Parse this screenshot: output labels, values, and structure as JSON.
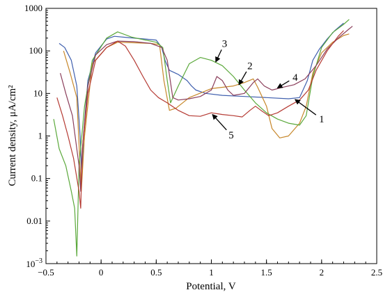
{
  "chart_data": {
    "type": "line",
    "title": "",
    "xlabel": "Potential, V",
    "ylabel": "Current density, μA/cm²",
    "xlim": [
      -0.5,
      2.5
    ],
    "ylim": [
      0.001,
      1000
    ],
    "yscale": "log",
    "grid": false,
    "legend": "none",
    "x_ticks": [
      {
        "v": -0.5,
        "label": "−0.5"
      },
      {
        "v": 0,
        "label": "0"
      },
      {
        "v": 0.5,
        "label": "0.5"
      },
      {
        "v": 1,
        "label": "1"
      },
      {
        "v": 1.5,
        "label": "1.5"
      },
      {
        "v": 2,
        "label": "2"
      },
      {
        "v": 2.5,
        "label": "2.5"
      }
    ],
    "y_ticks": [
      {
        "v": 1000,
        "label": "1000"
      },
      {
        "v": 100,
        "label": "100"
      },
      {
        "v": 10,
        "label": "10"
      },
      {
        "v": 1,
        "label": "1"
      },
      {
        "v": 0.1,
        "label": "0.1"
      },
      {
        "v": 0.01,
        "label": "0.01"
      }
    ],
    "y_min_label": {
      "base": "10",
      "exp": "−3"
    },
    "series": [
      {
        "name": "1",
        "color": "#3f5fae",
        "points": [
          [
            -0.38,
            150
          ],
          [
            -0.33,
            120
          ],
          [
            -0.27,
            60
          ],
          [
            -0.22,
            15
          ],
          [
            -0.19,
            1
          ],
          [
            -0.175,
            0.1
          ],
          [
            -0.16,
            1
          ],
          [
            -0.12,
            20
          ],
          [
            -0.05,
            90
          ],
          [
            0.05,
            190
          ],
          [
            0.12,
            220
          ],
          [
            0.25,
            205
          ],
          [
            0.4,
            190
          ],
          [
            0.5,
            180
          ],
          [
            0.55,
            120
          ],
          [
            0.58,
            60
          ],
          [
            0.62,
            35
          ],
          [
            0.7,
            28
          ],
          [
            0.78,
            20
          ],
          [
            0.82,
            15
          ],
          [
            0.86,
            12
          ],
          [
            0.95,
            10
          ],
          [
            1.1,
            9
          ],
          [
            1.3,
            8.5
          ],
          [
            1.5,
            8
          ],
          [
            1.7,
            7.5
          ],
          [
            1.8,
            8
          ],
          [
            1.87,
            20
          ],
          [
            1.92,
            60
          ],
          [
            1.98,
            110
          ],
          [
            2.05,
            190
          ],
          [
            2.12,
            300
          ],
          [
            2.2,
            450
          ]
        ]
      },
      {
        "name": "2",
        "color": "#c7872a",
        "points": [
          [
            -0.34,
            100
          ],
          [
            -0.28,
            30
          ],
          [
            -0.22,
            8
          ],
          [
            -0.18,
            0.05
          ],
          [
            -0.15,
            1
          ],
          [
            -0.08,
            50
          ],
          [
            0.05,
            120
          ],
          [
            0.15,
            160
          ],
          [
            0.3,
            155
          ],
          [
            0.45,
            150
          ],
          [
            0.53,
            140
          ],
          [
            0.57,
            20
          ],
          [
            0.62,
            4
          ],
          [
            0.68,
            4.5
          ],
          [
            0.8,
            8
          ],
          [
            1.0,
            13
          ],
          [
            1.2,
            15
          ],
          [
            1.3,
            18
          ],
          [
            1.38,
            22
          ],
          [
            1.42,
            14
          ],
          [
            1.5,
            5
          ],
          [
            1.55,
            1.5
          ],
          [
            1.62,
            0.9
          ],
          [
            1.7,
            1
          ],
          [
            1.8,
            2
          ],
          [
            1.86,
            5
          ],
          [
            1.92,
            30
          ],
          [
            2.0,
            90
          ],
          [
            2.1,
            160
          ],
          [
            2.2,
            230
          ],
          [
            2.25,
            250
          ]
        ]
      },
      {
        "name": "3",
        "color": "#5aa83a",
        "points": [
          [
            -0.43,
            2.5
          ],
          [
            -0.38,
            0.5
          ],
          [
            -0.32,
            0.2
          ],
          [
            -0.27,
            0.05
          ],
          [
            -0.24,
            0.02
          ],
          [
            -0.22,
            0.0015
          ],
          [
            -0.2,
            0.2
          ],
          [
            -0.15,
            5
          ],
          [
            -0.08,
            60
          ],
          [
            0.05,
            200
          ],
          [
            0.15,
            280
          ],
          [
            0.28,
            210
          ],
          [
            0.4,
            180
          ],
          [
            0.5,
            160
          ],
          [
            0.56,
            120
          ],
          [
            0.6,
            20
          ],
          [
            0.63,
            6
          ],
          [
            0.7,
            15
          ],
          [
            0.8,
            50
          ],
          [
            0.9,
            70
          ],
          [
            1.0,
            60
          ],
          [
            1.1,
            45
          ],
          [
            1.2,
            25
          ],
          [
            1.3,
            12
          ],
          [
            1.4,
            6
          ],
          [
            1.5,
            3.5
          ],
          [
            1.6,
            2.5
          ],
          [
            1.7,
            2
          ],
          [
            1.8,
            1.8
          ],
          [
            1.86,
            3
          ],
          [
            1.92,
            25
          ],
          [
            2.0,
            120
          ],
          [
            2.1,
            270
          ],
          [
            2.2,
            420
          ],
          [
            2.25,
            550
          ]
        ]
      },
      {
        "name": "4",
        "color": "#8a3d5a",
        "points": [
          [
            -0.37,
            30
          ],
          [
            -0.32,
            10
          ],
          [
            -0.26,
            3
          ],
          [
            -0.2,
            0.2
          ],
          [
            -0.185,
            0.05
          ],
          [
            -0.17,
            0.5
          ],
          [
            -0.12,
            15
          ],
          [
            -0.05,
            80
          ],
          [
            0.05,
            140
          ],
          [
            0.15,
            170
          ],
          [
            0.3,
            165
          ],
          [
            0.45,
            150
          ],
          [
            0.55,
            120
          ],
          [
            0.6,
            60
          ],
          [
            0.65,
            8
          ],
          [
            0.7,
            7
          ],
          [
            0.8,
            7.5
          ],
          [
            0.9,
            8.5
          ],
          [
            1.0,
            12
          ],
          [
            1.05,
            25
          ],
          [
            1.1,
            20
          ],
          [
            1.15,
            12
          ],
          [
            1.2,
            9
          ],
          [
            1.3,
            10
          ],
          [
            1.38,
            18
          ],
          [
            1.42,
            22
          ],
          [
            1.48,
            15
          ],
          [
            1.55,
            12
          ],
          [
            1.65,
            14
          ],
          [
            1.75,
            16
          ],
          [
            1.85,
            22
          ],
          [
            1.95,
            45
          ],
          [
            2.05,
            110
          ],
          [
            2.15,
            200
          ],
          [
            2.25,
            330
          ],
          [
            2.28,
            380
          ]
        ]
      },
      {
        "name": "5",
        "color": "#b53a33",
        "points": [
          [
            -0.4,
            8
          ],
          [
            -0.35,
            3
          ],
          [
            -0.3,
            1
          ],
          [
            -0.25,
            0.3
          ],
          [
            -0.2,
            0.05
          ],
          [
            -0.185,
            0.02
          ],
          [
            -0.17,
            0.5
          ],
          [
            -0.12,
            10
          ],
          [
            -0.05,
            60
          ],
          [
            0.05,
            120
          ],
          [
            0.15,
            170
          ],
          [
            0.22,
            130
          ],
          [
            0.3,
            60
          ],
          [
            0.38,
            25
          ],
          [
            0.45,
            12
          ],
          [
            0.52,
            8
          ],
          [
            0.6,
            6
          ],
          [
            0.7,
            4
          ],
          [
            0.8,
            3
          ],
          [
            0.9,
            2.9
          ],
          [
            1.0,
            3.5
          ],
          [
            1.1,
            3.2
          ],
          [
            1.2,
            3
          ],
          [
            1.28,
            2.8
          ],
          [
            1.35,
            4
          ],
          [
            1.4,
            5
          ],
          [
            1.45,
            4
          ],
          [
            1.52,
            3
          ],
          [
            1.6,
            3.5
          ],
          [
            1.7,
            5
          ],
          [
            1.8,
            7
          ],
          [
            1.88,
            12
          ],
          [
            1.95,
            35
          ],
          [
            2.05,
            100
          ],
          [
            2.15,
            220
          ],
          [
            2.2,
            300
          ]
        ]
      }
    ],
    "annotations": [
      {
        "text": "1",
        "x": 2.0,
        "y": 2.5,
        "target": [
          1.76,
          7.2
        ]
      },
      {
        "text": "2",
        "x": 1.35,
        "y": 45,
        "target": [
          1.25,
          16
        ]
      },
      {
        "text": "3",
        "x": 1.12,
        "y": 150,
        "target": [
          1.04,
          55
        ]
      },
      {
        "text": "4",
        "x": 1.76,
        "y": 24,
        "target": [
          1.6,
          13.5
        ]
      },
      {
        "text": "5",
        "x": 1.18,
        "y": 1.05,
        "target": [
          1.01,
          3.2
        ]
      }
    ]
  }
}
